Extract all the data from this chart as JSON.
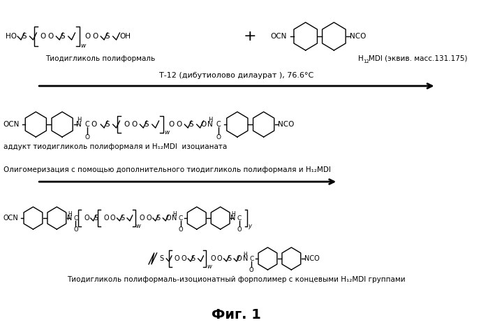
{
  "background_color": "#ffffff",
  "text_color": "#000000",
  "figsize": [
    6.99,
    4.65
  ],
  "dpi": 100,
  "label_tdgf": "Тиодигликоль полиформаль",
  "label_h12mdi": "H₁₂MDI (эквив. масс.131.175)",
  "label_adduct": "аддукт тиодигликоль полиформаля и H₁₂MDI  изоцианата",
  "label_oligo": "Олигомеризация с помощью дополнительного тиодигликоль полиформаля и H₁₂MDI",
  "label_catalyst": "Т-12 (дибутиолово дилаурат ), 76.6°С",
  "label_polymer": "Тиодигликоль полиформаль-изоционатный форполимер с концевыми H₁₂MDI группами",
  "label_fig": "Фиг. 1"
}
